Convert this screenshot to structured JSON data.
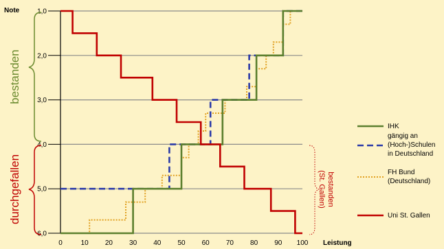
{
  "chart_data": {
    "type": "line",
    "ylabel": "Note",
    "xlabel": "Leistung",
    "xlim": [
      0,
      100
    ],
    "ylim": [
      1,
      6
    ],
    "y_inverted": true,
    "x_ticks": [
      "0",
      "10",
      "20",
      "30",
      "40",
      "50",
      "60",
      "70",
      "80",
      "90",
      "100"
    ],
    "y_ticks": [
      "1,0",
      "2,0",
      "3,0",
      "4,0",
      "5,0",
      "6,0"
    ],
    "horizontal_gridlines_at": [
      1,
      2,
      3,
      4,
      5,
      6
    ],
    "legend_position": "right",
    "annotations": {
      "pass": "bestanden",
      "fail": "durchgefallen",
      "pass_sg": "bestanden (St. Gallen)"
    },
    "series": [
      {
        "name": "IHK",
        "color": "#5b7f2e",
        "style": "solid",
        "x": [
          0,
          30,
          30,
          50,
          50,
          67,
          67,
          81,
          81,
          92,
          92,
          100
        ],
        "y": [
          6,
          6,
          5,
          5,
          4,
          4,
          3,
          3,
          2,
          2,
          1,
          1
        ]
      },
      {
        "name": "gängig an (Hoch-)Schulen in Deutschland",
        "color": "#2a3aa8",
        "style": "dashed",
        "x": [
          0,
          45,
          45,
          62,
          62,
          78,
          78,
          92,
          92,
          100
        ],
        "y": [
          5,
          5,
          4,
          4,
          3,
          3,
          2,
          2,
          1,
          1
        ]
      },
      {
        "name": "FH Bund (Deutschland)",
        "color": "#e0a020",
        "style": "dotted",
        "x": [
          0,
          12,
          12,
          27,
          27,
          35,
          35,
          42,
          42,
          50,
          50,
          53,
          53,
          57,
          57,
          60,
          60,
          68,
          68,
          77,
          77,
          81,
          81,
          85,
          85,
          88,
          88,
          92,
          92,
          95,
          95,
          100
        ],
        "y": [
          6,
          6,
          5.7,
          5.7,
          5.3,
          5.3,
          5.0,
          5.0,
          4.7,
          4.7,
          4.3,
          4.3,
          4.0,
          4.0,
          3.7,
          3.7,
          3.3,
          3.3,
          3.0,
          3.0,
          2.7,
          2.7,
          2.3,
          2.3,
          2.0,
          2.0,
          1.7,
          1.7,
          1.3,
          1.3,
          1.0,
          1.0
        ]
      },
      {
        "name": "Uni  St. Gallen",
        "color": "#c00000",
        "style": "solid",
        "x": [
          0,
          5,
          5,
          15,
          15,
          25,
          25,
          38,
          38,
          48,
          48,
          58,
          58,
          60,
          60,
          66,
          66,
          76,
          76,
          87,
          87,
          97,
          97,
          100
        ],
        "y": [
          1.0,
          1.0,
          1.5,
          1.5,
          2.0,
          2.0,
          2.5,
          2.5,
          3.0,
          3.0,
          3.5,
          3.5,
          4.0,
          4.0,
          4.0,
          4.0,
          4.5,
          4.5,
          5.0,
          5.0,
          5.5,
          5.5,
          6.0,
          6.0
        ]
      }
    ]
  }
}
